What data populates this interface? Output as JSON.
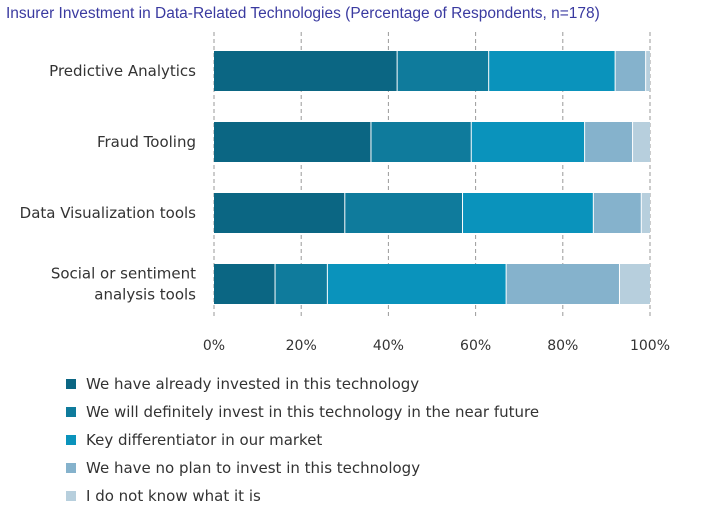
{
  "chart_data": {
    "type": "bar",
    "orientation": "horizontal",
    "stacked": true,
    "title": "Insurer Investment in Data-Related Technologies (Percentage of Respondents, n=178)",
    "categories": [
      "Predictive Analytics",
      "Fraud Tooling",
      "Data Visualization tools",
      "Social or sentiment analysis tools"
    ],
    "category_lines": [
      [
        "Predictive Analytics"
      ],
      [
        "Fraud Tooling"
      ],
      [
        "Data Visualization tools"
      ],
      [
        "Social or sentiment",
        "analysis tools"
      ]
    ],
    "series": [
      {
        "name": "We have already invested in this technology",
        "color": "#0b6683",
        "values": [
          42,
          36,
          30,
          14
        ]
      },
      {
        "name": "We will definitely invest in this technology in the near future",
        "color": "#0f7b9c",
        "values": [
          21,
          23,
          27,
          12
        ]
      },
      {
        "name": "Key differentiator in our market",
        "color": "#0a93bc",
        "values": [
          29,
          26,
          30,
          41
        ]
      },
      {
        "name": "We have no plan to invest in this technology",
        "color": "#85b2cc",
        "values": [
          7,
          11,
          11,
          26
        ]
      },
      {
        "name": "I do not know what it is",
        "color": "#b7cfdd",
        "values": [
          1,
          4,
          2,
          7
        ]
      }
    ],
    "xlim": [
      0,
      100
    ],
    "x_ticks": [
      0,
      20,
      40,
      60,
      80,
      100
    ],
    "x_tick_labels": [
      "0%",
      "20%",
      "40%",
      "60%",
      "80%",
      "100%"
    ],
    "grid": "vertical dashed",
    "legend_position": "bottom"
  }
}
